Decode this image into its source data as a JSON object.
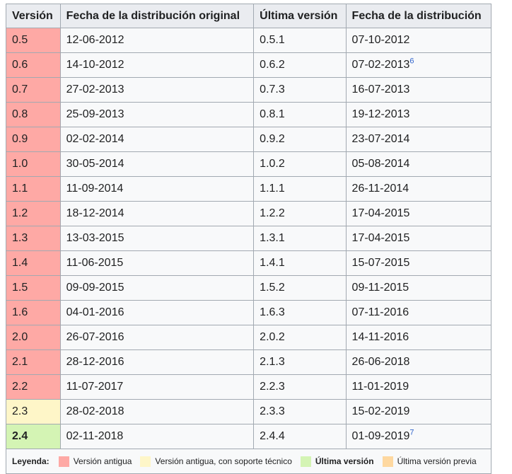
{
  "header": {
    "col1": "Versión",
    "col2": "Fecha de la distribución original",
    "col3": "Última versión",
    "col4": "Fecha de la distribución"
  },
  "rows": [
    {
      "version": "0.5",
      "orig_date": "12-06-2012",
      "last_version": "0.5.1",
      "last_date": "07-10-2012",
      "ref": "",
      "status": "old"
    },
    {
      "version": "0.6",
      "orig_date": "14-10-2012",
      "last_version": "0.6.2",
      "last_date": "07-02-2013",
      "ref": "6",
      "status": "old"
    },
    {
      "version": "0.7",
      "orig_date": "27-02-2013",
      "last_version": "0.7.3",
      "last_date": "16-07-2013",
      "ref": "",
      "status": "old"
    },
    {
      "version": "0.8",
      "orig_date": "25-09-2013",
      "last_version": "0.8.1",
      "last_date": "19-12-2013",
      "ref": "",
      "status": "old"
    },
    {
      "version": "0.9",
      "orig_date": "02-02-2014",
      "last_version": "0.9.2",
      "last_date": "23-07-2014",
      "ref": "",
      "status": "old"
    },
    {
      "version": "1.0",
      "orig_date": "30-05-2014",
      "last_version": "1.0.2",
      "last_date": "05-08-2014",
      "ref": "",
      "status": "old"
    },
    {
      "version": "1.1",
      "orig_date": "11-09-2014",
      "last_version": "1.1.1",
      "last_date": "26-11-2014",
      "ref": "",
      "status": "old"
    },
    {
      "version": "1.2",
      "orig_date": "18-12-2014",
      "last_version": "1.2.2",
      "last_date": "17-04-2015",
      "ref": "",
      "status": "old"
    },
    {
      "version": "1.3",
      "orig_date": "13-03-2015",
      "last_version": "1.3.1",
      "last_date": "17-04-2015",
      "ref": "",
      "status": "old"
    },
    {
      "version": "1.4",
      "orig_date": "11-06-2015",
      "last_version": "1.4.1",
      "last_date": "15-07-2015",
      "ref": "",
      "status": "old"
    },
    {
      "version": "1.5",
      "orig_date": "09-09-2015",
      "last_version": "1.5.2",
      "last_date": "09-11-2015",
      "ref": "",
      "status": "old"
    },
    {
      "version": "1.6",
      "orig_date": "04-01-2016",
      "last_version": "1.6.3",
      "last_date": "07-11-2016",
      "ref": "",
      "status": "old"
    },
    {
      "version": "2.0",
      "orig_date": "26-07-2016",
      "last_version": "2.0.2",
      "last_date": "14-11-2016",
      "ref": "",
      "status": "old"
    },
    {
      "version": "2.1",
      "orig_date": "28-12-2016",
      "last_version": "2.1.3",
      "last_date": "26-06-2018",
      "ref": "",
      "status": "old"
    },
    {
      "version": "2.2",
      "orig_date": "11-07-2017",
      "last_version": "2.2.3",
      "last_date": "11-01-2019",
      "ref": "",
      "status": "old"
    },
    {
      "version": "2.3",
      "orig_date": "28-02-2018",
      "last_version": "2.3.3",
      "last_date": "15-02-2019",
      "ref": "",
      "status": "oldsup"
    },
    {
      "version": "2.4",
      "orig_date": "02-11-2018",
      "last_version": "2.4.4",
      "last_date": "01-09-2019",
      "ref": "7",
      "status": "latest"
    }
  ],
  "legend": {
    "title": "Leyenda:",
    "items": [
      {
        "label": "Versión antigua",
        "color": "#fea9a5",
        "bold": false
      },
      {
        "label": "Versión antigua, con soporte técnico",
        "color": "#fef6c8",
        "bold": false
      },
      {
        "label": "Última versión",
        "color": "#d4f4b4",
        "bold": true
      },
      {
        "label": "Última versión previa",
        "color": "#fed8a0",
        "bold": false
      }
    ]
  },
  "colors": {
    "old": "#fea9a5",
    "old_supported": "#fef6c8",
    "latest": "#d4f4b4",
    "latest_preview": "#fed8a0",
    "link": "#3366cc"
  }
}
